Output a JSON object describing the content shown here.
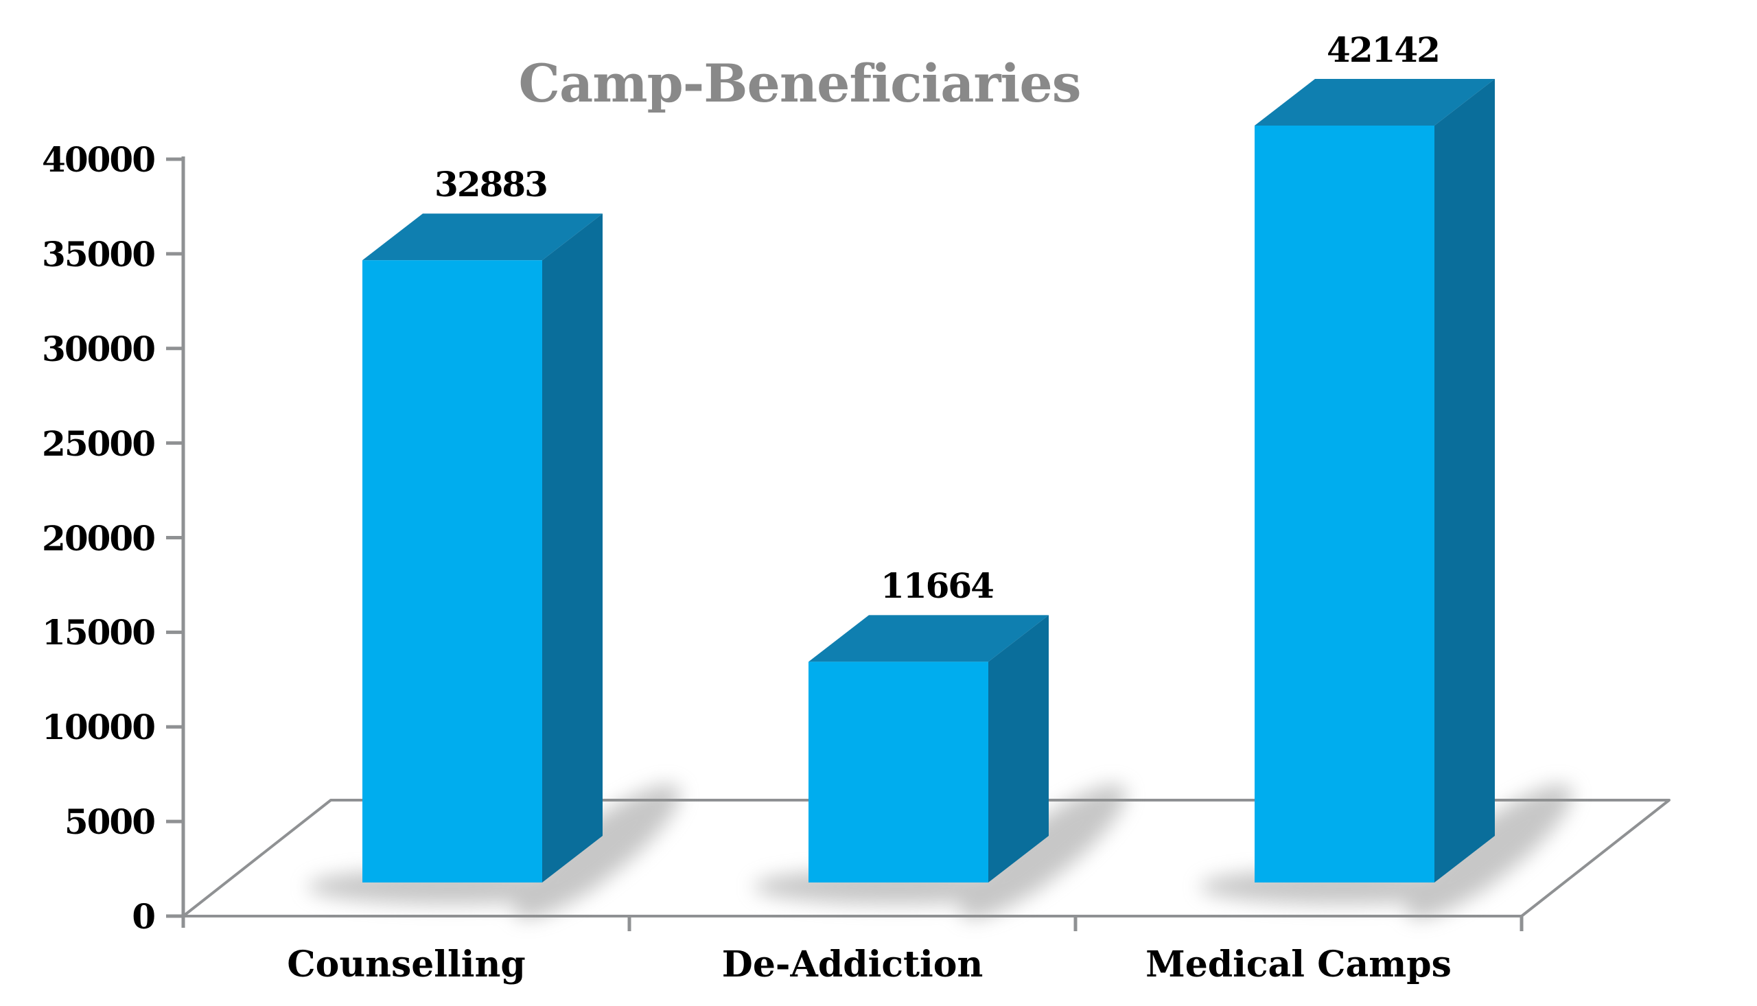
{
  "chart_data": {
    "type": "bar",
    "projection": "3d-column",
    "title": "Camp-Beneficiaries",
    "categories": [
      "Counselling",
      "De-Addiction",
      "Medical Camps"
    ],
    "values": [
      32883,
      11664,
      42142
    ],
    "value_labels": [
      "32883",
      "11664",
      "42142"
    ],
    "xlabel": "",
    "ylabel": "",
    "ylim": [
      0,
      40000
    ],
    "ytick_step": 5000,
    "ytick_labels": [
      "0",
      "5000",
      "10000",
      "15000",
      "20000",
      "25000",
      "30000",
      "35000",
      "40000"
    ],
    "grid": false,
    "legend": false,
    "columns_clipped_at_ymax": true,
    "colors": {
      "column_front": "#00ADEE",
      "column_top": "#0F7FB0",
      "column_side": "#0A6E9B",
      "shadow": "#8f8f8f",
      "title_text": "#898989",
      "axis_line": "#8F9193",
      "label_text": "#000000",
      "background": "#FFFFFF"
    }
  }
}
